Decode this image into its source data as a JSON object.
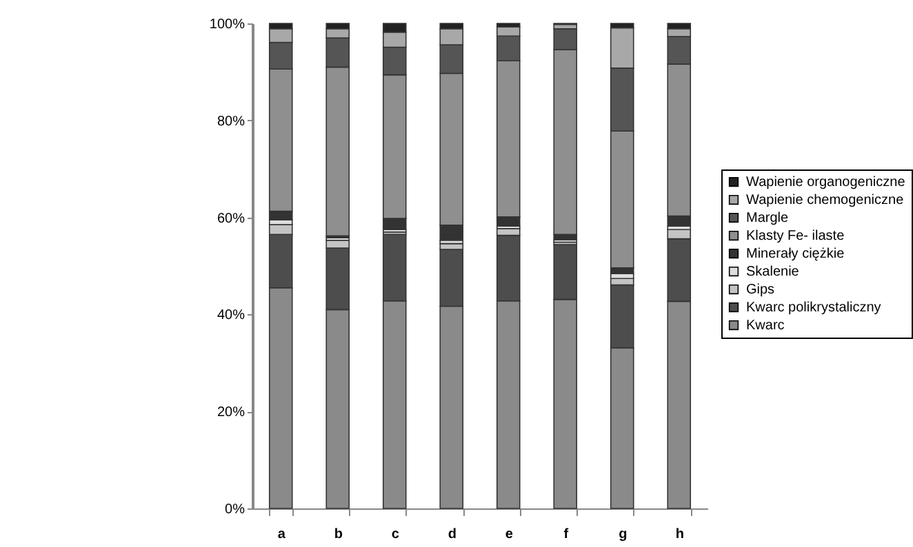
{
  "chart_data": {
    "type": "bar",
    "stacked": true,
    "categories": [
      "a",
      "b",
      "c",
      "d",
      "e",
      "f",
      "g",
      "h"
    ],
    "series": [
      {
        "name": "Kwarc",
        "color": "#8a8a8a",
        "values": [
          45.5,
          41.0,
          42.8,
          41.7,
          42.8,
          43.1,
          33.1,
          42.7
        ]
      },
      {
        "name": "Kwarc polikrystaliczny",
        "color": "#4d4d4d",
        "values": [
          11.0,
          12.7,
          13.7,
          11.7,
          13.5,
          11.3,
          13.0,
          12.9
        ]
      },
      {
        "name": "Gips",
        "color": "#c4c4c4",
        "values": [
          2.0,
          1.6,
          0.5,
          1.2,
          1.4,
          0.5,
          1.3,
          1.9
        ]
      },
      {
        "name": "Skalenie",
        "color": "#dedede",
        "values": [
          1.0,
          0.5,
          0.5,
          0.7,
          0.5,
          0.5,
          1.0,
          0.7
        ]
      },
      {
        "name": "Minerały ciężkie",
        "color": "#333333",
        "values": [
          1.8,
          0.4,
          2.3,
          3.1,
          1.9,
          1.1,
          1.2,
          2.1
        ]
      },
      {
        "name": "Klasty Fe- ilaste",
        "color": "#8f8f8f",
        "values": [
          29.3,
          34.8,
          29.6,
          31.3,
          32.2,
          38.1,
          28.2,
          31.3
        ]
      },
      {
        "name": "Margle",
        "color": "#555555",
        "values": [
          5.5,
          6.0,
          5.7,
          5.9,
          5.1,
          4.3,
          13.0,
          5.7
        ]
      },
      {
        "name": "Wapienie chemogeniczne",
        "color": "#a8a8a8",
        "values": [
          2.8,
          1.9,
          3.1,
          3.3,
          1.9,
          0.9,
          8.3,
          1.6
        ]
      },
      {
        "name": "Wapienie organogeniczne",
        "color": "#222222",
        "values": [
          1.1,
          1.1,
          1.8,
          1.1,
          0.7,
          0.2,
          0.9,
          1.1
        ]
      }
    ],
    "ylim": [
      0,
      100
    ],
    "yticks": [
      {
        "value": 0,
        "label": "0%"
      },
      {
        "value": 20,
        "label": "20%"
      },
      {
        "value": 40,
        "label": "40%"
      },
      {
        "value": 60,
        "label": "60%"
      },
      {
        "value": 80,
        "label": "80%"
      },
      {
        "value": 100,
        "label": "100%"
      }
    ],
    "legend": "right"
  }
}
